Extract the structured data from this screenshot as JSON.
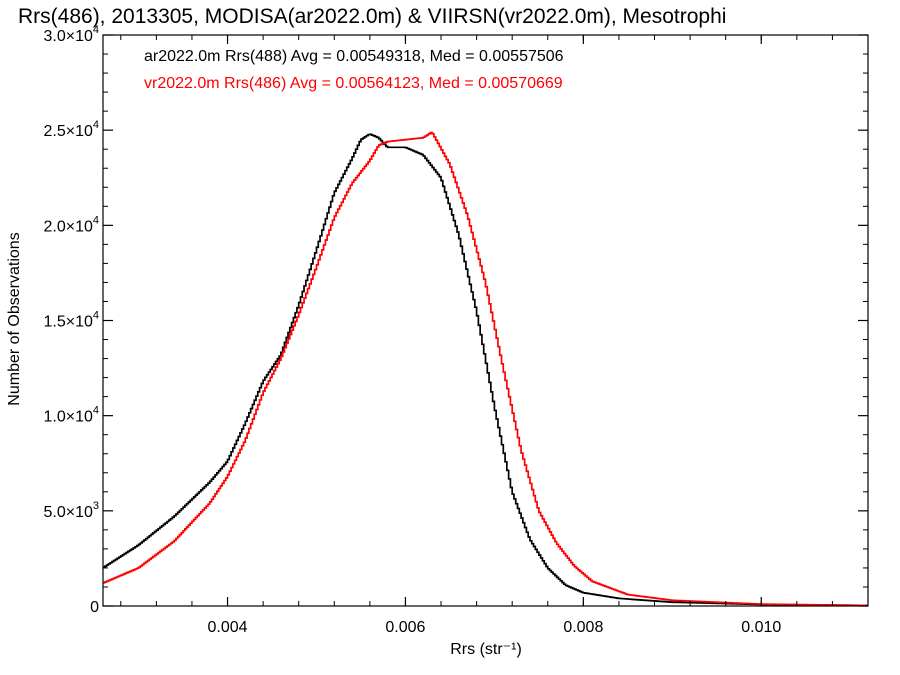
{
  "chart_data": {
    "type": "line",
    "title": "Rrs(486), 2013305, MODISA(ar2022.0m) & VIIRSN(vr2022.0m), Mesotrophi",
    "xlabel": "Rrs (str⁻¹)",
    "ylabel": "Number of Observations",
    "xlim": [
      0.0026,
      0.0112
    ],
    "ylim": [
      0,
      30000
    ],
    "x_ticks": [
      {
        "value": 0.004,
        "label": "0.004"
      },
      {
        "value": 0.006,
        "label": "0.006"
      },
      {
        "value": 0.008,
        "label": "0.008"
      },
      {
        "value": 0.01,
        "label": "0.010"
      }
    ],
    "y_ticks": [
      {
        "value": 0,
        "mant": "0",
        "exp": ""
      },
      {
        "value": 5000,
        "mant": "5.0×10",
        "exp": "3"
      },
      {
        "value": 10000,
        "mant": "1.0×10",
        "exp": "4"
      },
      {
        "value": 15000,
        "mant": "1.5×10",
        "exp": "4"
      },
      {
        "value": 20000,
        "mant": "2.0×10",
        "exp": "4"
      },
      {
        "value": 25000,
        "mant": "2.5×10",
        "exp": "4"
      },
      {
        "value": 30000,
        "mant": "3.0×10",
        "exp": "4"
      }
    ],
    "grid": false,
    "legend_position": "top-left",
    "series": [
      {
        "name": "ar2022.0m Rrs(488) Avg = 0.00549318, Med = 0.00557506",
        "color": "#000000",
        "points": [
          [
            0.0026,
            2000
          ],
          [
            0.003,
            3200
          ],
          [
            0.0034,
            4700
          ],
          [
            0.0038,
            6500
          ],
          [
            0.004,
            7600
          ],
          [
            0.0042,
            9600
          ],
          [
            0.0044,
            11800
          ],
          [
            0.0046,
            13200
          ],
          [
            0.0048,
            15800
          ],
          [
            0.005,
            18700
          ],
          [
            0.0052,
            21700
          ],
          [
            0.0054,
            23500
          ],
          [
            0.0055,
            24500
          ],
          [
            0.0056,
            24800
          ],
          [
            0.0057,
            24600
          ],
          [
            0.0058,
            24100
          ],
          [
            0.006,
            24100
          ],
          [
            0.0062,
            23700
          ],
          [
            0.0064,
            22500
          ],
          [
            0.0066,
            19500
          ],
          [
            0.0068,
            15500
          ],
          [
            0.007,
            10500
          ],
          [
            0.0072,
            6000
          ],
          [
            0.0074,
            3500
          ],
          [
            0.0076,
            2000
          ],
          [
            0.0078,
            1100
          ],
          [
            0.008,
            700
          ],
          [
            0.0084,
            400
          ],
          [
            0.009,
            200
          ],
          [
            0.01,
            80
          ],
          [
            0.0112,
            30
          ]
        ]
      },
      {
        "name": "vr2022.0m Rrs(486) Avg = 0.00564123, Med = 0.00570669",
        "color": "#ff0000",
        "points": [
          [
            0.0026,
            1200
          ],
          [
            0.003,
            2000
          ],
          [
            0.0034,
            3400
          ],
          [
            0.0038,
            5400
          ],
          [
            0.004,
            6800
          ],
          [
            0.0042,
            8700
          ],
          [
            0.0044,
            11200
          ],
          [
            0.0046,
            13000
          ],
          [
            0.0048,
            15300
          ],
          [
            0.005,
            17800
          ],
          [
            0.0052,
            20400
          ],
          [
            0.0054,
            22200
          ],
          [
            0.0056,
            23400
          ],
          [
            0.0057,
            24200
          ],
          [
            0.0058,
            24400
          ],
          [
            0.006,
            24500
          ],
          [
            0.0062,
            24600
          ],
          [
            0.0063,
            24900
          ],
          [
            0.0065,
            23200
          ],
          [
            0.0067,
            20500
          ],
          [
            0.0069,
            17000
          ],
          [
            0.0071,
            12500
          ],
          [
            0.0073,
            8200
          ],
          [
            0.0075,
            5000
          ],
          [
            0.0077,
            3300
          ],
          [
            0.0079,
            2100
          ],
          [
            0.0081,
            1300
          ],
          [
            0.0085,
            600
          ],
          [
            0.009,
            300
          ],
          [
            0.01,
            100
          ],
          [
            0.0112,
            30
          ]
        ]
      }
    ]
  }
}
